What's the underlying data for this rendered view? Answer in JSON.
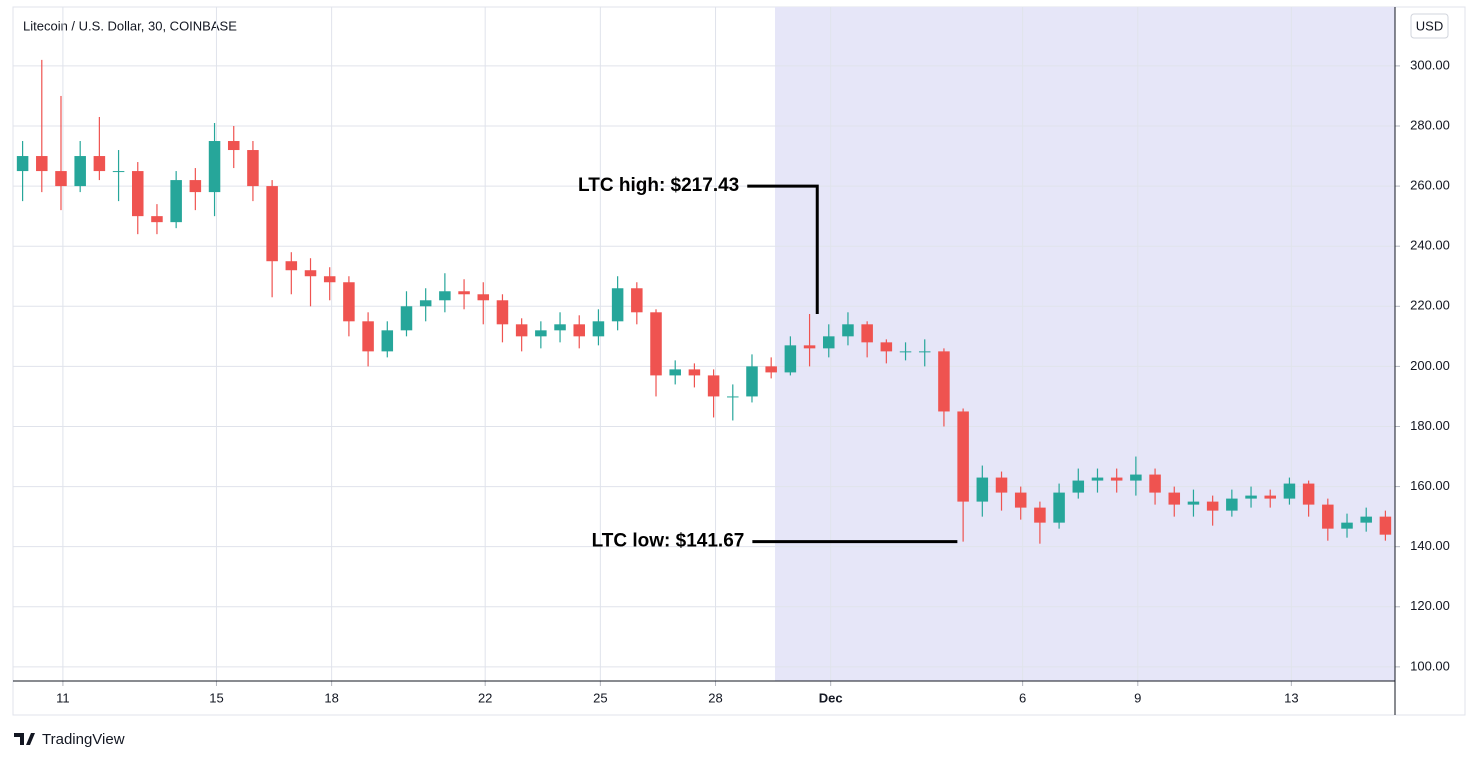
{
  "chart_data": {
    "type": "candlestick",
    "title": "Litecoin / U.S. Dollar, 30, COINBASE",
    "currency": "USD",
    "brand": "TradingView",
    "categories": [
      null,
      null,
      null,
      null,
      null,
      null,
      null,
      null,
      null,
      null,
      null,
      null,
      null,
      null,
      null,
      null,
      null,
      null,
      null,
      null,
      null,
      null,
      null,
      null,
      null,
      null,
      null,
      null,
      null,
      null,
      null,
      null,
      null,
      null,
      null,
      null,
      null,
      null,
      null,
      null,
      null,
      null,
      null,
      null,
      null,
      null,
      null,
      null,
      null,
      null,
      null,
      null,
      null,
      null,
      null,
      null,
      null,
      null,
      null,
      null,
      null,
      null,
      null,
      null,
      null,
      null,
      null,
      null,
      null,
      null,
      null,
      null
    ],
    "open": [
      265,
      270,
      265,
      260,
      270,
      265,
      265,
      250,
      248,
      262,
      258,
      275,
      272,
      260,
      235,
      232,
      230,
      228,
      215,
      205,
      212,
      220,
      222,
      225,
      224,
      222,
      214,
      210,
      212,
      214,
      210,
      215,
      226,
      218,
      197,
      199,
      197,
      190,
      190,
      200,
      198,
      207,
      206,
      210,
      214,
      208,
      205,
      205,
      205,
      185,
      155,
      163,
      158,
      153,
      148,
      158,
      162,
      163,
      162,
      164,
      158,
      154,
      155,
      152,
      156,
      157,
      156,
      161,
      154,
      146,
      148,
      150
    ],
    "high": [
      275,
      302,
      290,
      275,
      283,
      272,
      268,
      254,
      265,
      266,
      281,
      280,
      275,
      262,
      238,
      236,
      233,
      230,
      218,
      215,
      225,
      226,
      231,
      229,
      228,
      224,
      216,
      215,
      218,
      217,
      219,
      230,
      228,
      219,
      202,
      201,
      199,
      194,
      204,
      203,
      210,
      217.43,
      214,
      218,
      215,
      209,
      208,
      209,
      206,
      186,
      167,
      165,
      160,
      155,
      161,
      166,
      166,
      166,
      170,
      166,
      160,
      159,
      157,
      159,
      160,
      159,
      163,
      162,
      156,
      151,
      153,
      152
    ],
    "low": [
      255,
      258,
      252,
      258,
      262,
      255,
      244,
      244,
      246,
      252,
      250,
      266,
      255,
      223,
      224,
      220,
      222,
      210,
      200,
      203,
      210,
      215,
      218,
      219,
      214,
      208,
      205,
      206,
      208,
      206,
      207,
      212,
      214,
      190,
      194,
      193,
      183,
      182,
      188,
      196,
      197,
      200,
      203,
      207,
      203,
      201,
      202,
      200,
      180,
      141.67,
      150,
      152,
      149,
      141,
      146,
      156,
      158,
      158,
      157,
      154,
      150,
      150,
      147,
      150,
      153,
      153,
      154,
      150,
      142,
      143,
      145,
      142
    ],
    "close": [
      270,
      265,
      260,
      270,
      265,
      265,
      250,
      248,
      262,
      258,
      275,
      272,
      260,
      235,
      232,
      230,
      228,
      215,
      205,
      212,
      220,
      222,
      225,
      224,
      222,
      214,
      210,
      212,
      214,
      210,
      215,
      226,
      218,
      197,
      199,
      197,
      190,
      190,
      200,
      198,
      207,
      206,
      210,
      214,
      208,
      205,
      205,
      205,
      185,
      155,
      163,
      158,
      153,
      148,
      158,
      162,
      163,
      162,
      164,
      158,
      154,
      155,
      152,
      156,
      157,
      156,
      161,
      154,
      146,
      148,
      150,
      144
    ],
    "up_color": "#26a69a",
    "down_color": "#ef5350",
    "xlim": [
      -0.5,
      71.5
    ],
    "xticks": [
      {
        "value": 2.1,
        "label": "11"
      },
      {
        "value": 10.1,
        "label": "15"
      },
      {
        "value": 16.1,
        "label": "18"
      },
      {
        "value": 24.1,
        "label": "22"
      },
      {
        "value": 30.1,
        "label": "25"
      },
      {
        "value": 36.1,
        "label": "28"
      },
      {
        "value": 42.1,
        "label": "Dec",
        "major": true
      },
      {
        "value": 52.1,
        "label": "6"
      },
      {
        "value": 58.1,
        "label": "9"
      },
      {
        "value": 66.1,
        "label": "13"
      }
    ],
    "ylim": [
      95.3,
      319.6
    ],
    "yticks": [
      {
        "value": 100,
        "label": "100.00"
      },
      {
        "value": 120,
        "label": "120.00"
      },
      {
        "value": 140,
        "label": "140.00"
      },
      {
        "value": 160,
        "label": "160.00"
      },
      {
        "value": 180,
        "label": "180.00"
      },
      {
        "value": 200,
        "label": "200.00"
      },
      {
        "value": 220,
        "label": "220.00"
      },
      {
        "value": 240,
        "label": "240.00"
      },
      {
        "value": 260,
        "label": "260.00"
      },
      {
        "value": 280,
        "label": "280.00"
      },
      {
        "value": 300,
        "label": "300.00"
      }
    ],
    "grid": true,
    "highlight": {
      "from": 39.2,
      "to": 71.5,
      "color": "#e6e6f8"
    },
    "annotations": [
      {
        "label": "LTC high: $217.43",
        "value": 217.43,
        "x": 41.4,
        "text_level": 260
      },
      {
        "label": "LTC low: $141.67",
        "value": 141.67,
        "x": 48.7,
        "text_level": 141.67
      }
    ]
  }
}
